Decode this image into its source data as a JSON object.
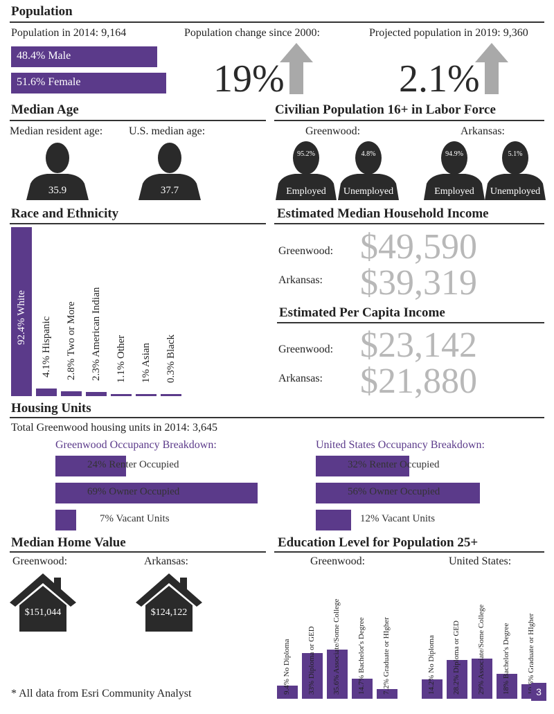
{
  "population": {
    "heading": "Population",
    "pop_2014": "Population in 2014: 9,164",
    "male": "48.4% Male",
    "male_share": 48.4,
    "female": "51.6% Female",
    "female_share": 51.6,
    "change_label": "Population change since 2000:",
    "change_value": "19%",
    "projected_label": "Projected population in 2019: 9,360",
    "projected_value": "2.1%"
  },
  "median_age": {
    "heading": "Median Age",
    "resident_label": "Median resident age:",
    "resident_value": "35.9",
    "us_label": "U.S. median age:",
    "us_value": "37.7"
  },
  "labor": {
    "heading": "Civilian Population 16+ in Labor Force",
    "greenwood_label": "Greenwood:",
    "arkansas_label": "Arkansas:",
    "gw_employed_pct": "95.2%",
    "gw_unemployed_pct": "4.8%",
    "ar_employed_pct": "94.9%",
    "ar_unemployed_pct": "5.1%",
    "employed": "Employed",
    "unemployed": "Unemployed"
  },
  "race": {
    "heading": "Race and Ethnicity",
    "items": [
      {
        "label": "92.4% White",
        "value": 92.4
      },
      {
        "label": "4.1% Hispanic",
        "value": 4.1
      },
      {
        "label": "2.8% Two or More",
        "value": 2.8
      },
      {
        "label": "2.3% American Indian",
        "value": 2.3
      },
      {
        "label": "1.1% Other",
        "value": 1.1
      },
      {
        "label": "1% Asian",
        "value": 1.0
      },
      {
        "label": "0.3% Black",
        "value": 0.3
      }
    ]
  },
  "income": {
    "heading": "Estimated Median Household Income",
    "greenwood_label": "Greenwood:",
    "greenwood_value": "$49,590",
    "arkansas_label": "Arkansas:",
    "arkansas_value": "$39,319"
  },
  "per_capita": {
    "heading": "Estimated Per Capita Income",
    "greenwood_label": "Greenwood:",
    "greenwood_value": "$23,142",
    "arkansas_label": "Arkansas:",
    "arkansas_value": "$21,880"
  },
  "housing": {
    "heading": "Housing Units",
    "total": "Total Greenwood housing units in 2014: 3,645",
    "gw_title": "Greenwood Occupancy Breakdown:",
    "us_title": "United States Occupancy Breakdown:",
    "gw": [
      {
        "label": "24% Renter Occupied",
        "value": 24
      },
      {
        "label": "69% Owner Occupied",
        "value": 69
      },
      {
        "label": "7% Vacant Units",
        "value": 7
      }
    ],
    "us": [
      {
        "label": "32% Renter Occupied",
        "value": 32
      },
      {
        "label": "56% Owner Occupied",
        "value": 56
      },
      {
        "label": "12% Vacant Units",
        "value": 12
      }
    ]
  },
  "home_value": {
    "heading": "Median Home Value",
    "greenwood_label": "Greenwood:",
    "greenwood_value": "$151,044",
    "arkansas_label": "Arkansas:",
    "arkansas_value": "$124,122"
  },
  "education": {
    "heading": "Education Level for Population 25+",
    "greenwood_label": "Greenwood:",
    "us_label": "United States:",
    "greenwood": [
      {
        "label": "9.4% No Diploma",
        "value": 9.4
      },
      {
        "label": "33% Diploma or GED",
        "value": 33
      },
      {
        "label": "35.6% Associate/Some College",
        "value": 35.6
      },
      {
        "label": "14.7% Bachelor's Degree",
        "value": 14.7
      },
      {
        "label": "7.2% Graduate or HIgher",
        "value": 7.2
      }
    ],
    "us": [
      {
        "label": "14.2% No Diploma",
        "value": 14.2
      },
      {
        "label": "28.2% Diploma or GED",
        "value": 28.2
      },
      {
        "label": "29% Associate/Some College",
        "value": 29
      },
      {
        "label": "18% Bachelor's Degree",
        "value": 18
      },
      {
        "label": "10.6% Graduate or HIgher",
        "value": 10.6
      }
    ]
  },
  "footer": {
    "note": "* All data from Esri Community Analyst",
    "page_number": "3"
  },
  "colors": {
    "purple": "#5b3a8a",
    "dark": "#2a2a2a",
    "gray_text": "#b8b8b8",
    "arrow_gray": "#a9a9a9"
  }
}
